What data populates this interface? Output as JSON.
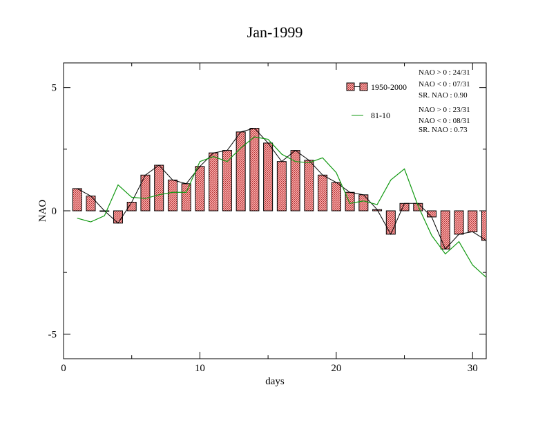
{
  "chart_data": {
    "type": "bar",
    "title": "Jan-1999",
    "xlabel": "days",
    "ylabel": "NAO",
    "xlim": [
      0,
      31
    ],
    "ylim": [
      -6,
      6
    ],
    "x_ticks": [
      {
        "value": 0,
        "label": "0"
      },
      {
        "value": 10,
        "label": "10"
      },
      {
        "value": 20,
        "label": "20"
      },
      {
        "value": 30,
        "label": "30"
      }
    ],
    "y_ticks": [
      {
        "value": 5,
        "label": "5"
      },
      {
        "value": 0,
        "label": "0"
      },
      {
        "value": -5,
        "label": "-5"
      }
    ],
    "grid": false,
    "legend_position": "top-right",
    "x": [
      1,
      2,
      3,
      4,
      5,
      6,
      7,
      8,
      9,
      10,
      11,
      12,
      13,
      14,
      15,
      16,
      17,
      18,
      19,
      20,
      21,
      22,
      23,
      24,
      25,
      26,
      27,
      28,
      29,
      30,
      31
    ],
    "series": [
      {
        "name": "1950-2000",
        "kind": "bar",
        "color": "#f08080",
        "values": [
          0.9,
          0.6,
          0.0,
          -0.5,
          0.35,
          1.45,
          1.85,
          1.25,
          1.1,
          1.8,
          2.35,
          2.45,
          3.2,
          3.35,
          2.75,
          2.0,
          2.45,
          2.05,
          1.45,
          1.15,
          0.75,
          0.65,
          0.05,
          -0.95,
          0.3,
          0.3,
          -0.25,
          -1.55,
          -0.95,
          -0.85,
          -1.2
        ]
      },
      {
        "name": "81-10",
        "kind": "line",
        "color": "#119911",
        "values": [
          -0.3,
          -0.45,
          -0.2,
          1.05,
          0.55,
          0.5,
          0.65,
          0.75,
          0.75,
          2.0,
          2.2,
          2.0,
          2.55,
          3.0,
          2.9,
          2.3,
          2.0,
          1.95,
          2.15,
          1.55,
          0.3,
          0.4,
          0.25,
          1.25,
          1.7,
          0.2,
          -1.0,
          -1.75,
          -1.25,
          -2.2,
          -2.7
        ]
      }
    ],
    "stats_1950_2000": [
      "NAO > 0 : 24/31",
      "NAO < 0 : 07/31",
      "SR. NAO :  0.90"
    ],
    "stats_81_10": [
      "NAO > 0 : 23/31",
      "NAO < 0 : 08/31",
      "SR. NAO :  0.73"
    ]
  }
}
